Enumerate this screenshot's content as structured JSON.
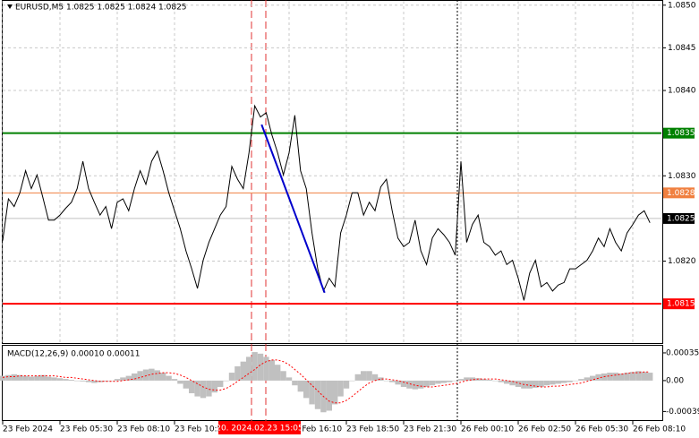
{
  "chart_data": [
    {
      "type": "line",
      "title": "EURUSD,M5 1.0825 1.0825 1.0824 1.0825",
      "color": "#000000",
      "values": [
        1.08224,
        1.08273,
        1.08264,
        1.0828,
        1.08306,
        1.08285,
        1.08301,
        1.08275,
        1.08248,
        1.08248,
        1.08254,
        1.08262,
        1.08269,
        1.08285,
        1.08317,
        1.08285,
        1.08269,
        1.08254,
        1.08264,
        1.08238,
        1.08269,
        1.08273,
        1.08259,
        1.08285,
        1.08306,
        1.0829,
        1.08317,
        1.08329,
        1.08306,
        1.0828,
        1.08259,
        1.08238,
        1.08212,
        1.08191,
        1.08168,
        1.08201,
        1.08222,
        1.08238,
        1.08254,
        1.08264,
        1.08311,
        1.08296,
        1.08285,
        1.08327,
        1.08382,
        1.08369,
        1.08374,
        1.08348,
        1.08327,
        1.08301,
        1.08327,
        1.08371,
        1.08306,
        1.08285,
        1.08233,
        1.08191,
        1.08165,
        1.0818,
        1.0817,
        1.08233,
        1.08254,
        1.0828,
        1.0828,
        1.08254,
        1.08269,
        1.08259,
        1.08287,
        1.08296,
        1.08259,
        1.08227,
        1.08217,
        1.08222,
        1.08248,
        1.08212,
        1.08196,
        1.08227,
        1.08238,
        1.08231,
        1.08222,
        1.08207,
        1.08317,
        1.08222,
        1.08243,
        1.08254,
        1.08222,
        1.08217,
        1.08207,
        1.08212,
        1.08196,
        1.08201,
        1.0818,
        1.08154,
        1.08186,
        1.08201,
        1.0817,
        1.08175,
        1.08165,
        1.08172,
        1.08175,
        1.08191,
        1.08191,
        1.08196,
        1.08201,
        1.08212,
        1.08227,
        1.08217,
        1.08238,
        1.08222,
        1.08212,
        1.08233,
        1.08243,
        1.08254,
        1.08259,
        1.08245
      ],
      "xlim": [
        0,
        115
      ],
      "xticks": [
        {
          "value": 0,
          "label": "23 Feb 2024"
        },
        {
          "value": 10,
          "label": "23 Feb 05:30"
        },
        {
          "value": 20,
          "label": "23 Feb 08:10"
        },
        {
          "value": 30,
          "label": "23 Feb 10:50"
        },
        {
          "value": 50,
          "label": "23 Feb 16:10"
        },
        {
          "value": 60,
          "label": "23 Feb 18:50"
        },
        {
          "value": 70,
          "label": "23 Feb 21:30"
        },
        {
          "value": 80,
          "label": "26 Feb 00:10"
        },
        {
          "value": 90,
          "label": "26 Feb 02:50"
        },
        {
          "value": 100,
          "label": "26 Feb 05:30"
        },
        {
          "value": 110,
          "label": "26 Feb 08:10"
        }
      ],
      "ylim": [
        1.08104,
        1.08505
      ],
      "yticks": [
        {
          "value": 1.085,
          "label": "1.0850"
        },
        1.0845,
        {
          "value": 1.084,
          "label": "1.0840"
        },
        {
          "value": 1.083,
          "label": "1.0830"
        },
        {
          "value": 1.082,
          "label": "1.0820"
        }
      ],
      "grid": true,
      "levels": [
        {
          "value": 1.0835,
          "label": "1.0835",
          "color": "#008000"
        },
        {
          "value": 1.0828,
          "label": "1.0828",
          "color": "#f08040"
        },
        {
          "value": 1.0825,
          "label": "1.0825",
          "color": "#000000"
        },
        {
          "value": 1.0815,
          "label": "1.0815",
          "color": "#ff0000"
        }
      ],
      "trendline": {
        "color": "#0000cc",
        "x": [
          45.2,
          56.2
        ],
        "y": [
          1.0836,
          1.08163
        ]
      },
      "annotation": "20. 2024.02.23 15:05"
    },
    {
      "type": "macd",
      "title": "MACD(12,26,9) 0.00010 0.00011",
      "histogram": {
        "color": "#c0c0c0",
        "values": [
          6e-05,
          7e-05,
          8e-05,
          7e-05,
          6e-05,
          5e-05,
          6e-05,
          7e-05,
          5e-05,
          4e-05,
          3e-05,
          2e-05,
          1e-05,
          0,
          -1e-05,
          -2e-05,
          -3e-05,
          -2e-05,
          -1e-05,
          0,
          2e-05,
          4e-05,
          6e-05,
          9e-05,
          0.00012,
          0.00014,
          0.00015,
          0.00013,
          0.0001,
          6e-05,
          2e-05,
          -4e-05,
          -0.0001,
          -0.00016,
          -0.0002,
          -0.00022,
          -0.0002,
          -0.00015,
          -8e-05,
          0,
          0.0001,
          0.00018,
          0.00024,
          0.0003,
          0.00036,
          0.00034,
          0.0003,
          0.00026,
          0.0002,
          0.00012,
          4e-05,
          -6e-05,
          -0.00014,
          -0.00022,
          -0.0003,
          -0.00036,
          -0.0004,
          -0.00038,
          -0.0003,
          -0.0002,
          -0.0001,
          0,
          8e-05,
          0.00012,
          0.00012,
          8e-05,
          4e-05,
          0,
          -2e-05,
          -5e-05,
          -8e-05,
          -0.0001,
          -0.00011,
          -0.0001,
          -8e-05,
          -6e-05,
          -4e-05,
          -3e-05,
          -2e-05,
          0,
          2e-05,
          4e-05,
          4e-05,
          3e-05,
          2e-05,
          1e-05,
          0,
          -2e-05,
          -4e-05,
          -6e-05,
          -8e-05,
          -0.0001,
          -0.0001,
          -9e-05,
          -8e-05,
          -6e-05,
          -5e-05,
          -4e-05,
          -3e-05,
          -2e-05,
          0,
          2e-05,
          4e-05,
          6e-05,
          8e-05,
          9e-05,
          0.0001,
          0.0001,
          9e-05,
          0.0001,
          0.00011,
          0.00012,
          0.00011,
          0.0001
        ]
      },
      "signal": {
        "color": "#ff0000",
        "values": [
          4e-05,
          5e-05,
          5e-05,
          6e-05,
          6e-05,
          6e-05,
          6e-05,
          6e-05,
          6e-05,
          6e-05,
          5e-05,
          4e-05,
          4e-05,
          3e-05,
          2e-05,
          1e-05,
          0,
          -1e-05,
          -1e-05,
          -1e-05,
          -1e-05,
          0,
          1e-05,
          2e-05,
          4e-05,
          6e-05,
          8e-05,
          9e-05,
          0.0001,
          0.0001,
          9e-05,
          7e-05,
          4e-05,
          0,
          -4e-05,
          -8e-05,
          -0.00011,
          -0.00012,
          -0.00012,
          -0.0001,
          -6e-05,
          -1e-05,
          4e-05,
          9e-05,
          0.00014,
          0.0002,
          0.00024,
          0.00026,
          0.00026,
          0.00024,
          0.0002,
          0.00014,
          8e-05,
          1e-05,
          -6e-05,
          -0.00013,
          -0.0002,
          -0.00026,
          -0.00028,
          -0.00028,
          -0.00025,
          -0.0002,
          -0.00014,
          -8e-05,
          -3e-05,
          0,
          2e-05,
          2e-05,
          1e-05,
          0,
          -2e-05,
          -4e-05,
          -6e-05,
          -7e-05,
          -8e-05,
          -8e-05,
          -7e-05,
          -6e-05,
          -5e-05,
          -4e-05,
          -2e-05,
          0,
          1e-05,
          2e-05,
          2e-05,
          2e-05,
          2e-05,
          1e-05,
          0,
          -1e-05,
          -3e-05,
          -5e-05,
          -6e-05,
          -7e-05,
          -8e-05,
          -8e-05,
          -7e-05,
          -7e-05,
          -6e-05,
          -5e-05,
          -4e-05,
          -3e-05,
          -1e-05,
          1e-05,
          3e-05,
          5e-05,
          6e-05,
          7e-05,
          8e-05,
          9e-05,
          0.0001,
          0.0001,
          0.00011,
          0.00011
        ]
      },
      "ylim": [
        -0.00051,
        0.00044
      ],
      "yticks": [
        0.00035,
        {
          "value": 0,
          "label": "0.00"
        },
        -0.00039
      ]
    }
  ]
}
